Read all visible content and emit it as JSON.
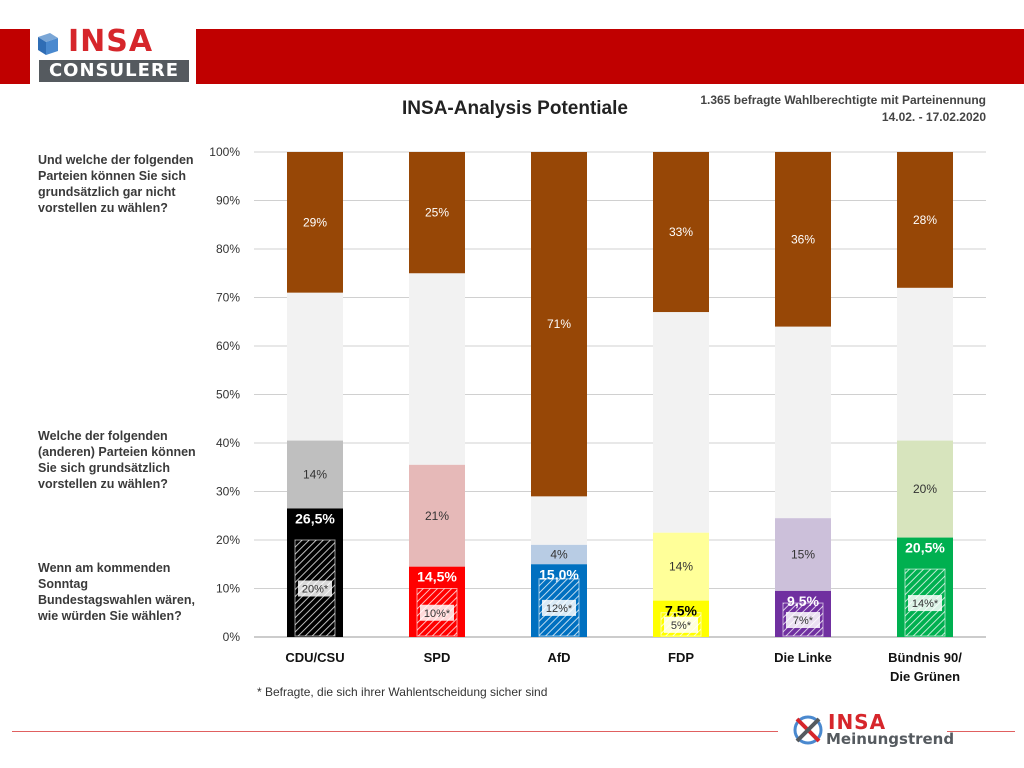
{
  "header": {
    "logo_top": "INSA",
    "logo_bottom": "CONSULERE"
  },
  "title": "INSA-Analysis Potentiale",
  "source": {
    "line1": "1.365 befragte Wahlberechtigte mit Parteinennung",
    "line2": "14.02. - 17.02.2020"
  },
  "questions": {
    "q1": "Und welche der folgenden Parteien können Sie sich grundsätzlich gar nicht vorstellen zu wählen?",
    "q2": "Welche der folgenden (anderen) Parteien können Sie sich grundsätzlich vorstellen zu wählen?",
    "q3": "Wenn am kommenden Sonntag Bundestagswahlen wären, wie würden Sie wählen?"
  },
  "footnote": "* Befragte, die sich ihrer Wahlentscheidung sicher sind",
  "footer_logo": {
    "top": "INSA",
    "bottom": "Meinungstrend"
  },
  "chart_data": {
    "type": "bar",
    "stacked": true,
    "ylim": [
      0,
      100
    ],
    "yticks": [
      "0%",
      "10%",
      "20%",
      "30%",
      "40%",
      "50%",
      "60%",
      "70%",
      "80%",
      "90%",
      "100%"
    ],
    "grid": true,
    "categories": [
      {
        "label": [
          "CDU/CSU"
        ],
        "vote": 26.5,
        "vote_label": "26,5%",
        "sure": 20,
        "sure_label": "20%*",
        "potential": 14,
        "potential_label": "14%",
        "reject": 29,
        "reject_label": "29%",
        "colors": {
          "vote": "#000000",
          "potential": "#bfbfbf",
          "reject": "#974706",
          "vote_text": "#ffffff"
        }
      },
      {
        "label": [
          "SPD"
        ],
        "vote": 14.5,
        "vote_label": "14,5%",
        "sure": 10,
        "sure_label": "10%*",
        "potential": 21,
        "potential_label": "21%",
        "reject": 25,
        "reject_label": "25%",
        "colors": {
          "vote": "#ff0000",
          "potential": "#e6b9b8",
          "reject": "#974706",
          "vote_text": "#ffffff"
        }
      },
      {
        "label": [
          "AfD"
        ],
        "vote": 15.0,
        "vote_label": "15,0%",
        "sure": 12,
        "sure_label": "12%*",
        "potential": 4,
        "potential_label": "4%",
        "reject": 71,
        "reject_label": "71%",
        "colors": {
          "vote": "#0070c0",
          "potential": "#b8cce4",
          "reject": "#974706",
          "vote_text": "#ffffff"
        }
      },
      {
        "label": [
          "FDP"
        ],
        "vote": 7.5,
        "vote_label": "7,5%",
        "sure": 5,
        "sure_label": "5%*",
        "potential": 14,
        "potential_label": "14%",
        "reject": 33,
        "reject_label": "33%",
        "colors": {
          "vote": "#ffff00",
          "potential": "#ffff99",
          "reject": "#974706",
          "vote_text": "#000000"
        }
      },
      {
        "label": [
          "Die Linke"
        ],
        "vote": 9.5,
        "vote_label": "9,5%",
        "sure": 7,
        "sure_label": "7%*",
        "potential": 15,
        "potential_label": "15%",
        "reject": 36,
        "reject_label": "36%",
        "colors": {
          "vote": "#7030a0",
          "potential": "#ccc0da",
          "reject": "#974706",
          "vote_text": "#ffffff"
        }
      },
      {
        "label": [
          "Bündnis 90/",
          "Die Grünen"
        ],
        "vote": 20.5,
        "vote_label": "20,5%",
        "sure": 14,
        "sure_label": "14%*",
        "potential": 20,
        "potential_label": "20%",
        "reject": 28,
        "reject_label": "28%",
        "colors": {
          "vote": "#00b050",
          "potential": "#d7e4bd",
          "reject": "#974706",
          "vote_text": "#ffffff"
        }
      }
    ],
    "neutral_color": "#f2f2f2"
  }
}
